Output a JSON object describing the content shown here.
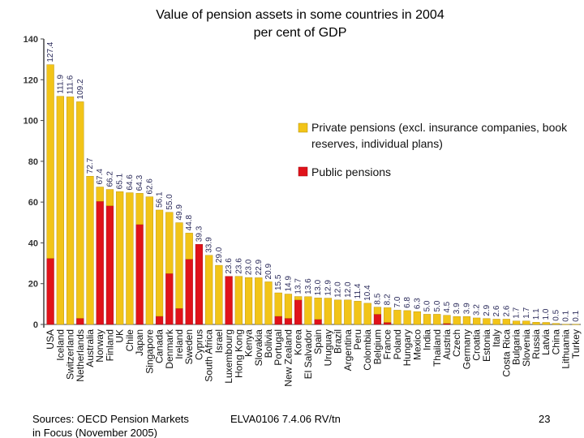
{
  "title_lines": [
    "Value of pension assets in some countries in 2004",
    "per cent of GDP"
  ],
  "footer": {
    "source": "Sources: OECD Pension Markets in Focus (November 2005)",
    "reference": "ELVA0106  7.4.06  RV/tn",
    "page_number": "23"
  },
  "colors": {
    "private": "#f2c418",
    "public": "#e0121a",
    "axis": "#444444",
    "value_label": "#2a2a5a"
  },
  "chart_data": {
    "type": "bar",
    "stacked": true,
    "title": "Value of pension assets in some countries in 2004 per cent of GDP",
    "ylim": [
      0,
      140
    ],
    "yticks": [
      0,
      20,
      40,
      60,
      80,
      100,
      120,
      140
    ],
    "grid": false,
    "legend_position": "top-right",
    "categories": [
      "USA",
      "Iceland",
      "Switzerland",
      "Netherlands",
      "Australia",
      "Norway",
      "Finland",
      "UK",
      "Chile",
      "Japan",
      "Singapore",
      "Canada",
      "Denmark",
      "Ireland",
      "Sweden",
      "Cyprus",
      "South Africa",
      "Israel",
      "Luxembourg",
      "Hong Kong",
      "Kenya",
      "Slovakia",
      "Bolivia",
      "Portugal",
      "New Zealand",
      "Korea",
      "El Salvador",
      "Spain",
      "Uruguay",
      "Brazil",
      "Argentina",
      "Peru",
      "Colombia",
      "Belgium",
      "France",
      "Poland",
      "Hungary",
      "Mexico",
      "India",
      "Thailand",
      "Austria",
      "Czech",
      "Germany",
      "Croatia",
      "Estonia",
      "Italy",
      "Costa Rica",
      "Bulgaria",
      "Slovenia",
      "Russia",
      "Latvia",
      "China",
      "Lithuania",
      "Turkey"
    ],
    "totals": [
      127.4,
      111.9,
      111.6,
      109.2,
      72.7,
      67.4,
      66.2,
      65.1,
      64.6,
      64.3,
      62.6,
      56.1,
      55.0,
      49.9,
      44.8,
      39.3,
      33.9,
      29.0,
      23.6,
      23.6,
      23.0,
      22.9,
      20.9,
      15.5,
      14.9,
      13.7,
      13.6,
      13.0,
      12.9,
      12.0,
      12.0,
      11.4,
      10.4,
      8.5,
      8.2,
      7.0,
      6.8,
      6.3,
      5.0,
      5.0,
      4.5,
      3.9,
      3.9,
      3.2,
      2.9,
      2.6,
      2.6,
      1.7,
      1.7,
      1.1,
      1.0,
      0.5,
      0.1,
      0.1
    ],
    "series": [
      {
        "name": "Private pensions  (excl. insurance companies, book reserves, individual plans)",
        "values": [
          95.0,
          111.9,
          111.6,
          106.2,
          72.7,
          7.0,
          8.0,
          65.1,
          64.6,
          15.3,
          62.6,
          52.1,
          30.0,
          42.0,
          12.8,
          0.0,
          33.9,
          29.0,
          0.0,
          23.6,
          23.0,
          22.9,
          20.9,
          11.5,
          11.9,
          1.7,
          13.6,
          10.5,
          12.9,
          12.0,
          12.0,
          11.4,
          10.4,
          3.5,
          7.2,
          7.0,
          6.8,
          6.3,
          5.0,
          5.0,
          4.0,
          3.9,
          3.9,
          3.2,
          2.9,
          2.6,
          2.6,
          1.7,
          1.7,
          1.1,
          1.0,
          0.5,
          0.1,
          0.1
        ]
      },
      {
        "name": "Public pensions",
        "values": [
          32.4,
          0.0,
          0.0,
          3.0,
          0.0,
          60.4,
          58.2,
          0.0,
          0.0,
          49.0,
          0.0,
          4.0,
          25.0,
          7.9,
          32.0,
          39.3,
          0.0,
          0.0,
          23.6,
          0.0,
          0.0,
          0.0,
          0.0,
          4.0,
          3.0,
          12.0,
          0.0,
          2.5,
          0.0,
          0.0,
          0.0,
          0.0,
          0.0,
          5.0,
          1.0,
          0.0,
          0.0,
          0.0,
          0.0,
          0.0,
          0.5,
          0.0,
          0.0,
          0.0,
          0.0,
          0.0,
          0.0,
          0.0,
          0.0,
          0.0,
          0.0,
          0.0,
          0.0,
          0.0
        ]
      }
    ],
    "legend": [
      "Private pensions  (excl. insurance companies, book",
      "reserves, individual plans)",
      "Public pensions"
    ]
  }
}
